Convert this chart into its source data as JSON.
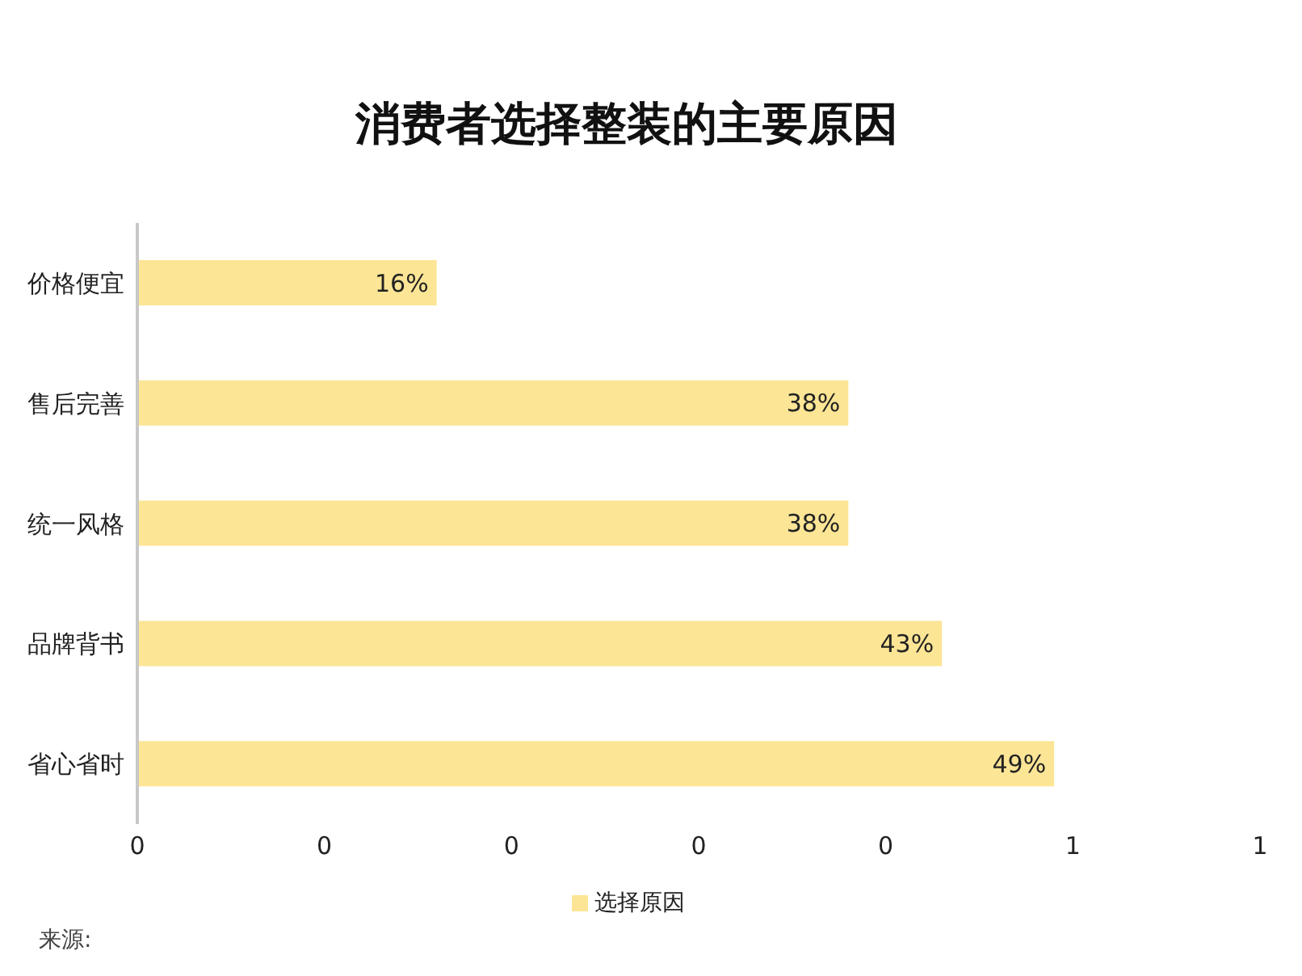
{
  "chart_data": {
    "type": "bar",
    "orientation": "horizontal",
    "title": "消费者选择整装的主要原因",
    "categories": [
      "价格便宜",
      "售后完善",
      "统一风格",
      "品牌背书",
      "省心省时"
    ],
    "series": [
      {
        "name": "选择原因",
        "color": "#fce595",
        "values": [
          0.16,
          0.38,
          0.38,
          0.43,
          0.49
        ],
        "value_labels": [
          "16%",
          "38%",
          "38%",
          "43%",
          "49%"
        ]
      }
    ],
    "xlim": [
      0,
      0.6
    ],
    "xticks": [
      0,
      {
        "value": 0.1,
        "label": "0"
      },
      {
        "value": 0.2,
        "label": "0"
      },
      {
        "value": 0.3,
        "label": "0"
      },
      {
        "value": 0.4,
        "label": "0"
      },
      {
        "value": 0.5,
        "label": "1"
      },
      {
        "value": 0.6,
        "label": "1"
      }
    ],
    "grid": false,
    "legend": "bottom",
    "annotations": [
      "来源:"
    ]
  }
}
